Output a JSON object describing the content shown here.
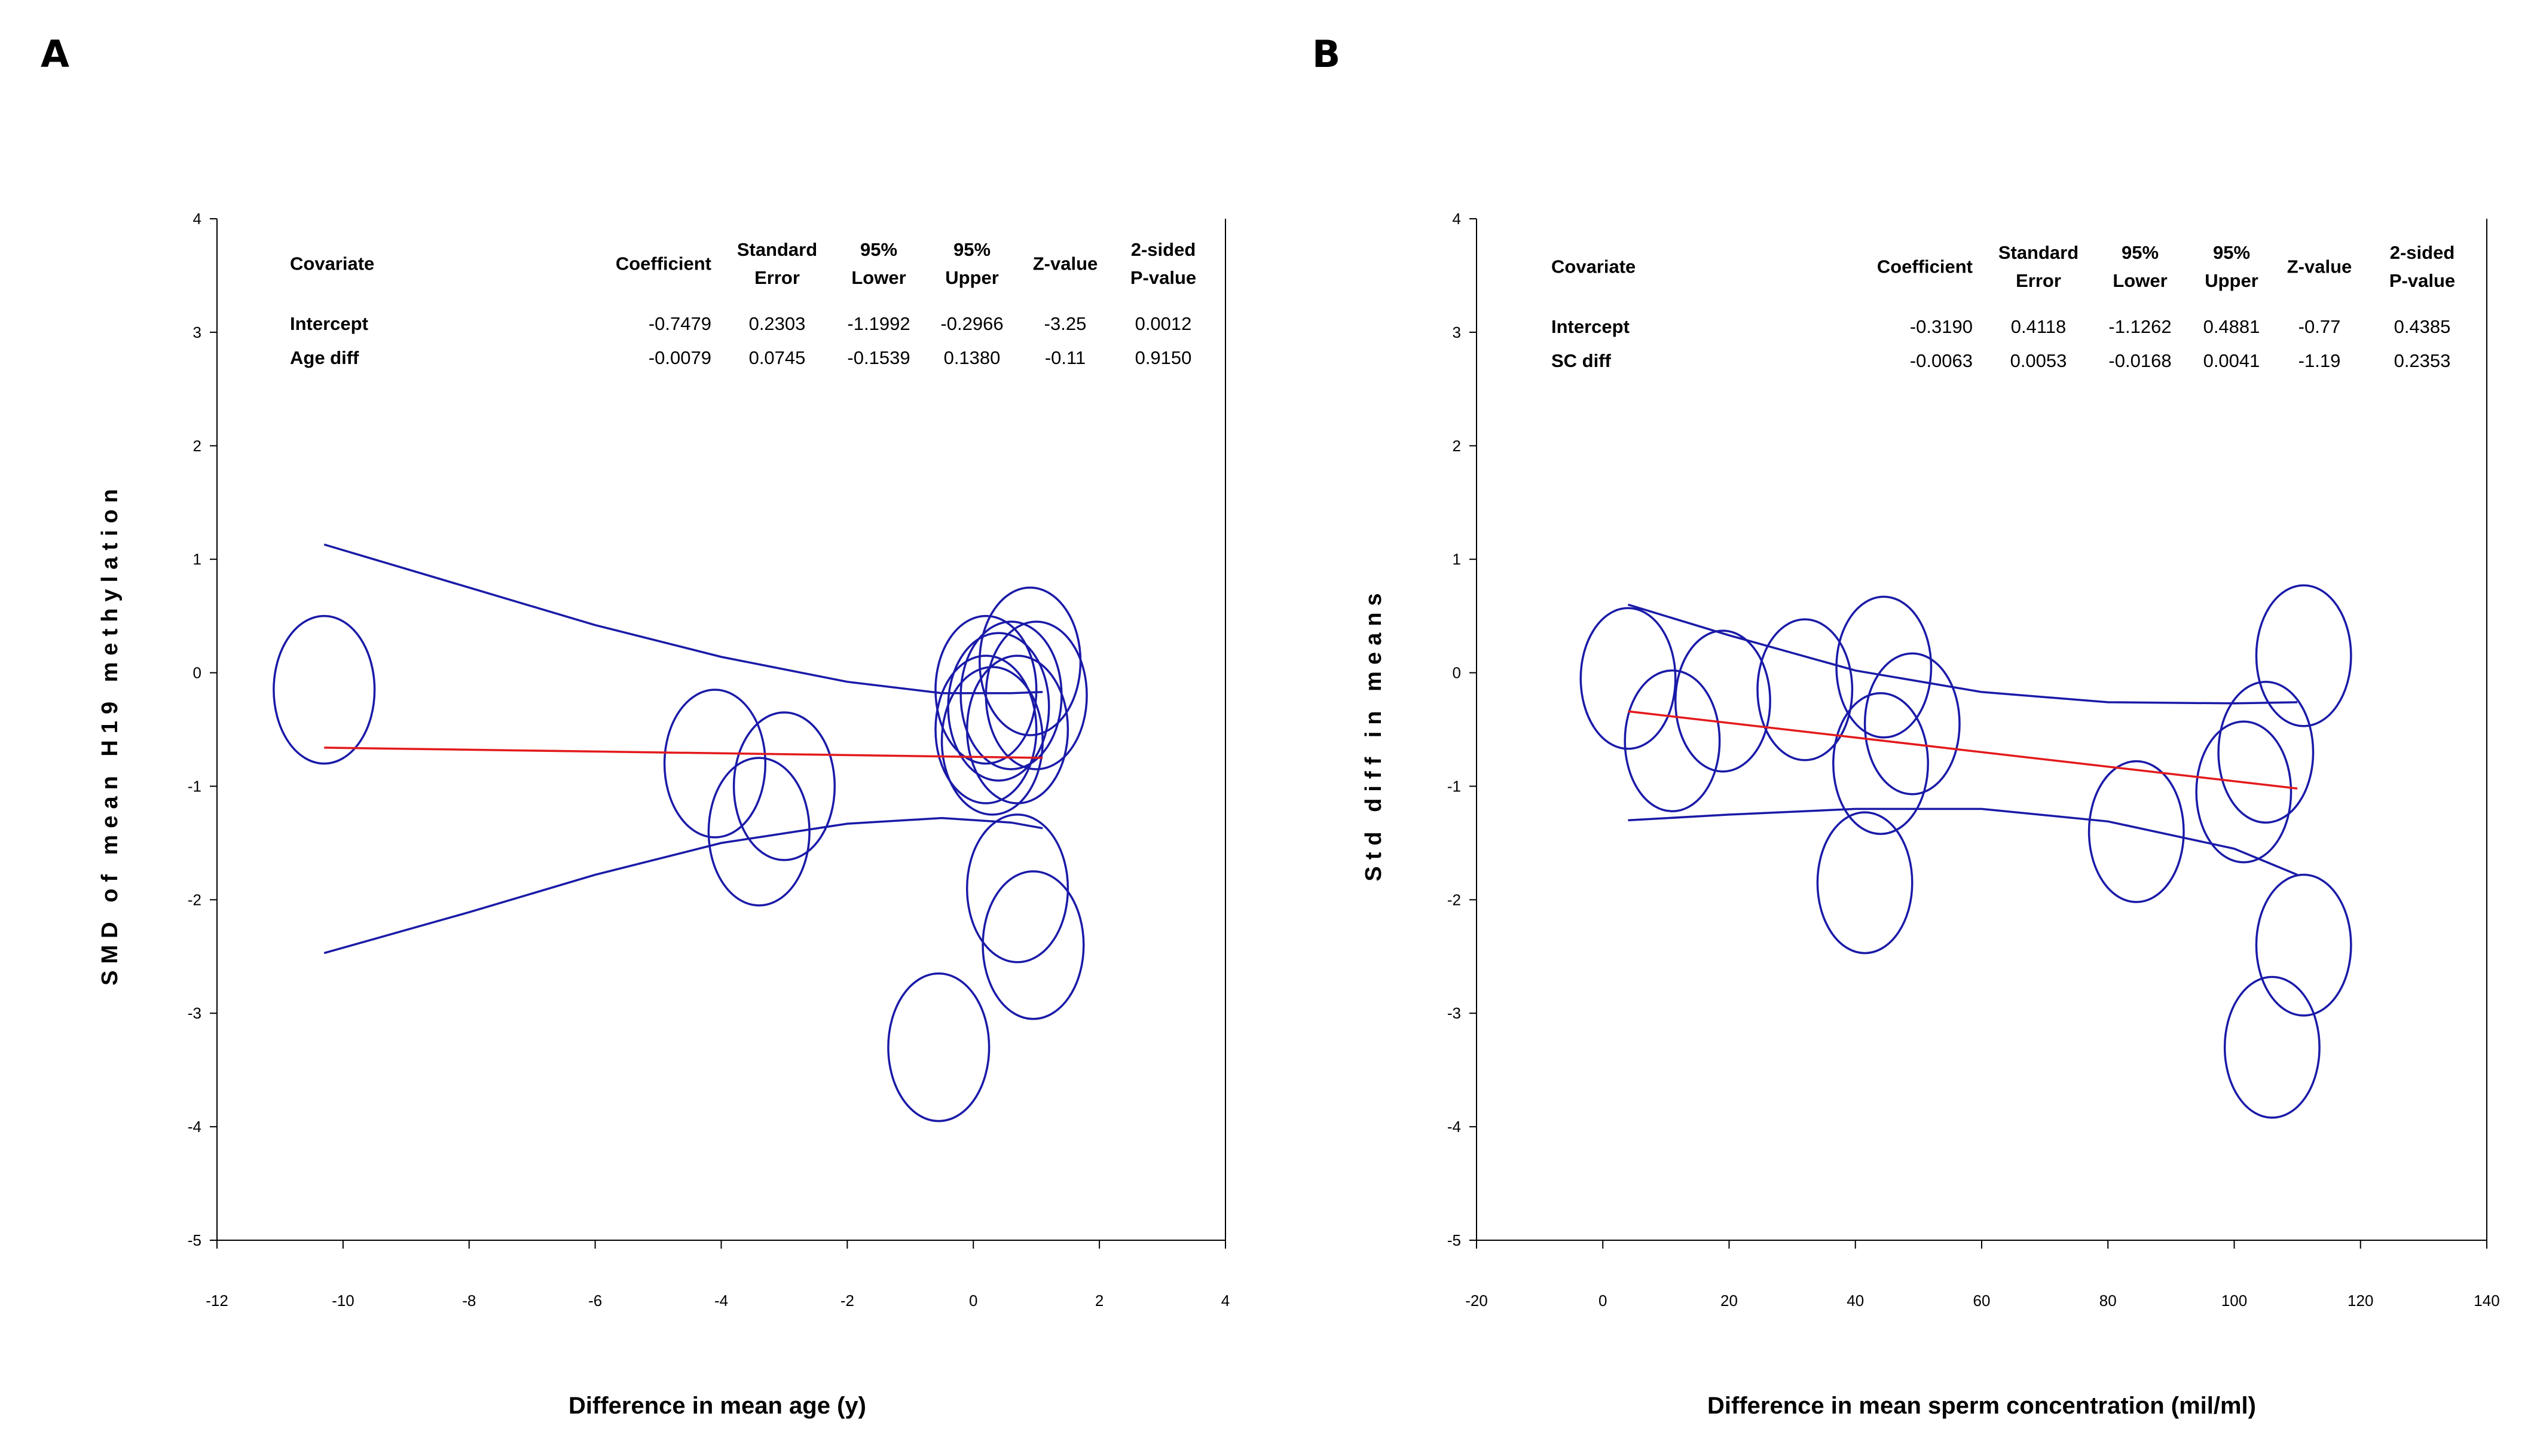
{
  "chart_data": [
    {
      "panel": "A",
      "type": "scatter",
      "subtype": "meta-regression bubble plot",
      "xlabel": "Difference in mean age (y)",
      "ylabel": "SMD of mean H19 methylation",
      "xlim": [
        -12,
        4
      ],
      "ylim": [
        -5,
        4
      ],
      "xticks": [
        -12,
        -10,
        -8,
        -6,
        -4,
        -2,
        0,
        2,
        4
      ],
      "yticks": [
        4,
        3,
        2,
        1,
        0,
        -1,
        -2,
        -3,
        -4,
        -5
      ],
      "table": {
        "headers": [
          "Covariate",
          "Coefficient",
          "Standard Error",
          "95% Lower",
          "95% Upper",
          "Z-value",
          "2-sided P-value"
        ],
        "rows": [
          [
            "Intercept",
            "-0.7479",
            "0.2303",
            "-1.1992",
            "-0.2966",
            "-3.25",
            "0.0012"
          ],
          [
            "Age diff",
            "-0.0079",
            "0.0745",
            "-0.1539",
            "0.1380",
            "-0.11",
            "0.9150"
          ]
        ]
      },
      "points": [
        {
          "x": -10.3,
          "y": -0.15
        },
        {
          "x": -4.1,
          "y": -0.8
        },
        {
          "x": -3.4,
          "y": -1.4
        },
        {
          "x": -3.0,
          "y": -1.0
        },
        {
          "x": 0.2,
          "y": -0.15
        },
        {
          "x": 0.3,
          "y": -0.6
        },
        {
          "x": 0.4,
          "y": -0.3
        },
        {
          "x": 0.6,
          "y": -0.2
        },
        {
          "x": 0.9,
          "y": 0.1
        },
        {
          "x": 1.0,
          "y": -0.2
        },
        {
          "x": 0.2,
          "y": -0.5
        },
        {
          "x": 0.7,
          "y": -0.5
        },
        {
          "x": 0.7,
          "y": -1.9
        },
        {
          "x": 0.95,
          "y": -2.4
        },
        {
          "x": -0.55,
          "y": -3.3
        }
      ],
      "bubble_radius": {
        "x": 0.8,
        "y": 0.65
      },
      "regression_line": {
        "x": [
          -10.3,
          1.1
        ],
        "y": [
          -0.66,
          -0.75
        ]
      },
      "ci_upper": {
        "x": [
          -10.3,
          -8,
          -6,
          -4,
          -2,
          -0.5,
          0.6,
          1.1
        ],
        "y": [
          1.13,
          0.75,
          0.42,
          0.14,
          -0.08,
          -0.18,
          -0.18,
          -0.17
        ]
      },
      "ci_lower": {
        "x": [
          -10.3,
          -8,
          -6,
          -4,
          -2,
          -0.5,
          0.6,
          1.1
        ],
        "y": [
          -2.47,
          -2.11,
          -1.78,
          -1.5,
          -1.33,
          -1.28,
          -1.32,
          -1.37
        ]
      }
    },
    {
      "panel": "B",
      "type": "scatter",
      "subtype": "meta-regression bubble plot",
      "xlabel": "Difference in mean sperm concentration (mil/ml)",
      "ylabel": "Std diff in means",
      "xlim": [
        -20,
        140
      ],
      "ylim": [
        -5,
        4
      ],
      "xticks": [
        -20,
        0,
        20,
        40,
        60,
        80,
        100,
        120,
        140
      ],
      "yticks": [
        4,
        3,
        2,
        1,
        0,
        -1,
        -2,
        -3,
        -4,
        -5
      ],
      "table": {
        "headers": [
          "Covariate",
          "Coefficient",
          "Standard Error",
          "95% Lower",
          "95% Upper",
          "Z-value",
          "2-sided P-value"
        ],
        "rows": [
          [
            "Intercept",
            "-0.3190",
            "0.4118",
            "-1.1262",
            "0.4881",
            "-0.77",
            "0.4385"
          ],
          [
            "SC diff",
            "-0.0063",
            "0.0053",
            "-0.0168",
            "0.0041",
            "-1.19",
            "0.2353"
          ]
        ]
      },
      "points": [
        {
          "x": 4,
          "y": -0.05
        },
        {
          "x": 11,
          "y": -0.6
        },
        {
          "x": 19,
          "y": -0.25
        },
        {
          "x": 32,
          "y": -0.15
        },
        {
          "x": 44.5,
          "y": 0.05
        },
        {
          "x": 49,
          "y": -0.45
        },
        {
          "x": 44,
          "y": -0.8
        },
        {
          "x": 41.5,
          "y": -1.85
        },
        {
          "x": 84.5,
          "y": -1.4
        },
        {
          "x": 101.5,
          "y": -1.05
        },
        {
          "x": 105,
          "y": -0.7
        },
        {
          "x": 111,
          "y": 0.15
        },
        {
          "x": 111,
          "y": -2.4
        },
        {
          "x": 106,
          "y": -3.3
        }
      ],
      "bubble_radius": {
        "x": 7.5,
        "y": 0.62
      },
      "regression_line": {
        "x": [
          4,
          110
        ],
        "y": [
          -0.34,
          -1.02
        ]
      },
      "ci_upper": {
        "x": [
          4,
          20,
          40,
          60,
          80,
          100,
          110
        ],
        "y": [
          0.6,
          0.33,
          0.02,
          -0.17,
          -0.26,
          -0.27,
          -0.26
        ]
      },
      "ci_lower": {
        "x": [
          4,
          20,
          40,
          60,
          80,
          100,
          110
        ],
        "y": [
          -1.3,
          -1.25,
          -1.2,
          -1.2,
          -1.31,
          -1.55,
          -1.78
        ]
      }
    }
  ],
  "colors": {
    "bubble": "#1a1aa8",
    "ci": "#1a1aa8",
    "regression": "#e31a1c",
    "axis": "#000000"
  }
}
